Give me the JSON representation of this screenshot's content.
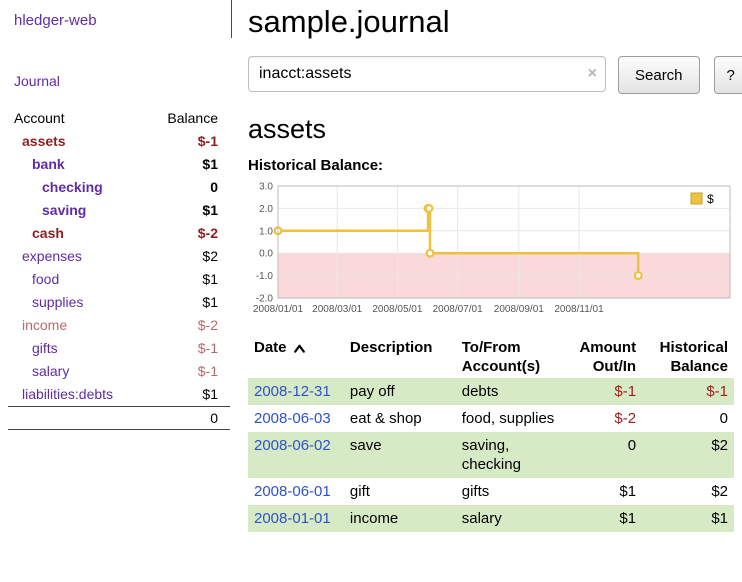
{
  "app": {
    "title": "hledger-web"
  },
  "sidebar": {
    "nav_journal": "Journal",
    "accounts": {
      "header_account": "Account",
      "header_balance": "Balance",
      "rows": [
        {
          "name": "assets",
          "balance": "$-1",
          "indent": 1,
          "bold": true,
          "name_tone": "neg",
          "balance_tone": "neg"
        },
        {
          "name": "bank",
          "balance": "$1",
          "indent": 2,
          "bold": true,
          "name_tone": "",
          "balance_tone": ""
        },
        {
          "name": "checking",
          "balance": "0",
          "indent": 3,
          "bold": true,
          "name_tone": "",
          "balance_tone": ""
        },
        {
          "name": "saving",
          "balance": "$1",
          "indent": 3,
          "bold": true,
          "name_tone": "",
          "balance_tone": ""
        },
        {
          "name": "cash",
          "balance": "$-2",
          "indent": 2,
          "bold": true,
          "name_tone": "neg",
          "balance_tone": "neg"
        },
        {
          "name": "expenses",
          "balance": "$2",
          "indent": 1,
          "bold": false,
          "name_tone": "",
          "balance_tone": ""
        },
        {
          "name": "food",
          "balance": "$1",
          "indent": 2,
          "bold": false,
          "name_tone": "",
          "balance_tone": ""
        },
        {
          "name": "supplies",
          "balance": "$1",
          "indent": 2,
          "bold": false,
          "name_tone": "",
          "balance_tone": ""
        },
        {
          "name": "income",
          "balance": "$-2",
          "indent": 1,
          "bold": false,
          "name_tone": "negsoft",
          "balance_tone": "negsoft"
        },
        {
          "name": "gifts",
          "balance": "$-1",
          "indent": 2,
          "bold": false,
          "name_tone": "",
          "balance_tone": "negsoft"
        },
        {
          "name": "salary",
          "balance": "$-1",
          "indent": 2,
          "bold": false,
          "name_tone": "",
          "balance_tone": "negsoft"
        },
        {
          "name": "liabilities:debts",
          "balance": "$1",
          "indent": 1,
          "bold": false,
          "name_tone": "",
          "balance_tone": ""
        }
      ],
      "total": "0"
    }
  },
  "main": {
    "title": "sample.journal",
    "search": {
      "value": "inacct:assets",
      "clear": "×",
      "button": "Search",
      "help": "?"
    },
    "account_heading": "assets",
    "chart_label": "Historical Balance:"
  },
  "chart_data": {
    "type": "line",
    "title": "Historical Balance",
    "step": "after",
    "ylim": [
      -2,
      3
    ],
    "yticks": [
      3.0,
      2.0,
      1.0,
      0.0,
      -1.0,
      -2.0
    ],
    "x_range_days": [
      0,
      458
    ],
    "xticks": [
      {
        "day": 0,
        "label": "2008/01/01"
      },
      {
        "day": 60,
        "label": "2008/03/01"
      },
      {
        "day": 121,
        "label": "2008/05/01"
      },
      {
        "day": 182,
        "label": "2008/07/01"
      },
      {
        "day": 244,
        "label": "2008/09/01"
      },
      {
        "day": 305,
        "label": "2008/11/01"
      }
    ],
    "series": [
      {
        "name": "$",
        "color": "#edc240",
        "points": [
          {
            "date": "2008-01-01",
            "day": 0,
            "value": 1
          },
          {
            "date": "2008-06-01",
            "day": 152,
            "value": 2
          },
          {
            "date": "2008-06-02",
            "day": 153,
            "value": 2
          },
          {
            "date": "2008-06-03",
            "day": 154,
            "value": 0
          },
          {
            "date": "2008-12-31",
            "day": 365,
            "value": -1
          }
        ]
      }
    ],
    "legend": [
      {
        "label": "$",
        "color": "#edc240"
      }
    ],
    "legend_position": "top-right",
    "grid": true,
    "negative_region": {
      "from": 0,
      "to": -2,
      "color": "#f9d9d9"
    }
  },
  "register": {
    "headers": {
      "date": "Date",
      "description": "Description",
      "tofrom": "To/From Account(s)",
      "amount": "Amount Out/In",
      "balance": "Historical Balance"
    },
    "rows": [
      {
        "date": "2008-12-31",
        "description": "pay off",
        "accounts": "debts",
        "amount": "$-1",
        "balance": "$-1",
        "amount_neg": true,
        "balance_neg": true
      },
      {
        "date": "2008-06-03",
        "description": "eat & shop",
        "accounts": "food, supplies",
        "amount": "$-2",
        "balance": "0",
        "amount_neg": true,
        "balance_neg": false
      },
      {
        "date": "2008-06-02",
        "description": "save",
        "accounts": "saving, checking",
        "amount": "0",
        "balance": "$2",
        "amount_neg": false,
        "balance_neg": false
      },
      {
        "date": "2008-06-01",
        "description": "gift",
        "accounts": "gifts",
        "amount": "$1",
        "balance": "$2",
        "amount_neg": false,
        "balance_neg": false
      },
      {
        "date": "2008-01-01",
        "description": "income",
        "accounts": "salary",
        "amount": "$1",
        "balance": "$1",
        "amount_neg": false,
        "balance_neg": false
      }
    ]
  },
  "colors": {
    "link_purple": "#5e2ca5",
    "negative_strong": "#8f1f1f",
    "negative_soft": "#b96a6a",
    "register_negative": "#a02020",
    "date_blue": "#2e51cc",
    "row_green": "#d7eac6",
    "chart_line_gold": "#edc240",
    "chart_negative_pink": "#f9d9d9"
  }
}
